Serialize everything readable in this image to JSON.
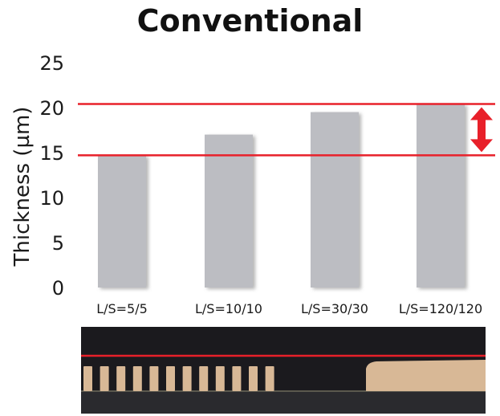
{
  "chart_data": {
    "type": "bar",
    "title": "Conventional",
    "ylabel": "Thickness (µm)",
    "xlabel": "",
    "categories": [
      "L/S=5/5",
      "L/S=10/10",
      "L/S=30/30",
      "L/S=120/120"
    ],
    "values": [
      14.7,
      17.0,
      19.5,
      20.4
    ],
    "ylim": [
      0,
      25
    ],
    "yticks": [
      "0",
      "5",
      "10",
      "15",
      "20",
      "25"
    ],
    "reference_lines": [
      20.4,
      14.7
    ],
    "grid": false,
    "legend": "none",
    "bar_color": "#bcbdc2",
    "line_color": "#e8202a"
  },
  "photo": {
    "description_icon": "cross-section-photo",
    "pattern_lines": 12,
    "colors": {
      "background": "#1b1a1e",
      "copper": "#d8b896",
      "substrate": "#2a2a2e",
      "marker": "#e8202a"
    }
  }
}
